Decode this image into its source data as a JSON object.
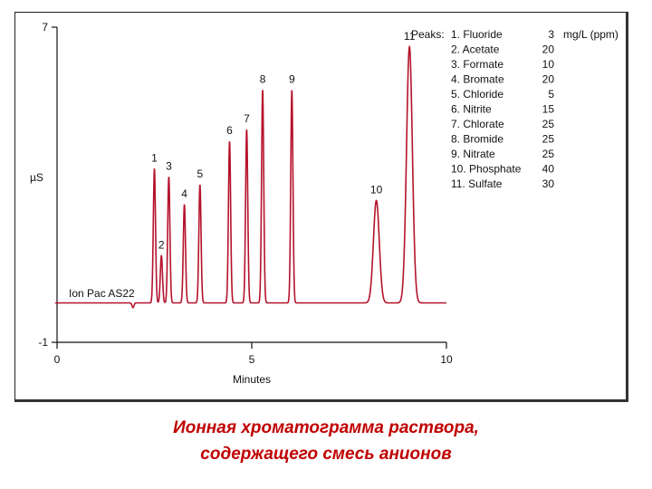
{
  "chart_data": {
    "type": "line",
    "ylabel": "µS",
    "xlabel": "Minutes",
    "xlim": [
      0,
      10
    ],
    "ylim": [
      -1,
      7
    ],
    "x_ticks": [
      "0",
      "5",
      "10"
    ],
    "y_ticks": [
      "7",
      "-1"
    ],
    "column_annotation": "Ion Pac AS22",
    "series_color": "#b5122c",
    "baseline": 0.0,
    "peaks": [
      {
        "label": "1",
        "time": 2.5,
        "height": 3.4
      },
      {
        "label": "2",
        "time": 2.68,
        "height": 1.2
      },
      {
        "label": "3",
        "time": 2.87,
        "height": 3.2
      },
      {
        "label": "4",
        "time": 3.27,
        "height": 2.5
      },
      {
        "label": "5",
        "time": 3.67,
        "height": 3.0
      },
      {
        "label": "6",
        "time": 4.43,
        "height": 4.1
      },
      {
        "label": "7",
        "time": 4.87,
        "height": 4.4
      },
      {
        "label": "8",
        "time": 5.28,
        "height": 5.4
      },
      {
        "label": "9",
        "time": 6.03,
        "height": 5.4
      },
      {
        "label": "10",
        "time": 8.2,
        "height": 2.6
      },
      {
        "label": "11",
        "time": 9.05,
        "height": 6.5
      }
    ],
    "legend": {
      "title": "Peaks:",
      "unit": "mg/L (ppm)",
      "entries": [
        {
          "name": "1. Fluoride",
          "conc": "3"
        },
        {
          "name": "2. Acetate",
          "conc": "20"
        },
        {
          "name": "3. Formate",
          "conc": "10"
        },
        {
          "name": "4. Bromate",
          "conc": "20"
        },
        {
          "name": "5. Chloride",
          "conc": "5"
        },
        {
          "name": "6. Nitrite",
          "conc": "15"
        },
        {
          "name": "7. Chlorate",
          "conc": "25"
        },
        {
          "name": "8. Bromide",
          "conc": "25"
        },
        {
          "name": "9. Nitrate",
          "conc": "25"
        },
        {
          "name": "10. Phosphate",
          "conc": "40"
        },
        {
          "name": "11. Sulfate",
          "conc": "30"
        }
      ]
    }
  },
  "caption": {
    "line1": "Ионная хроматограмма раствора,",
    "line2": "содержащего смесь анионов"
  }
}
